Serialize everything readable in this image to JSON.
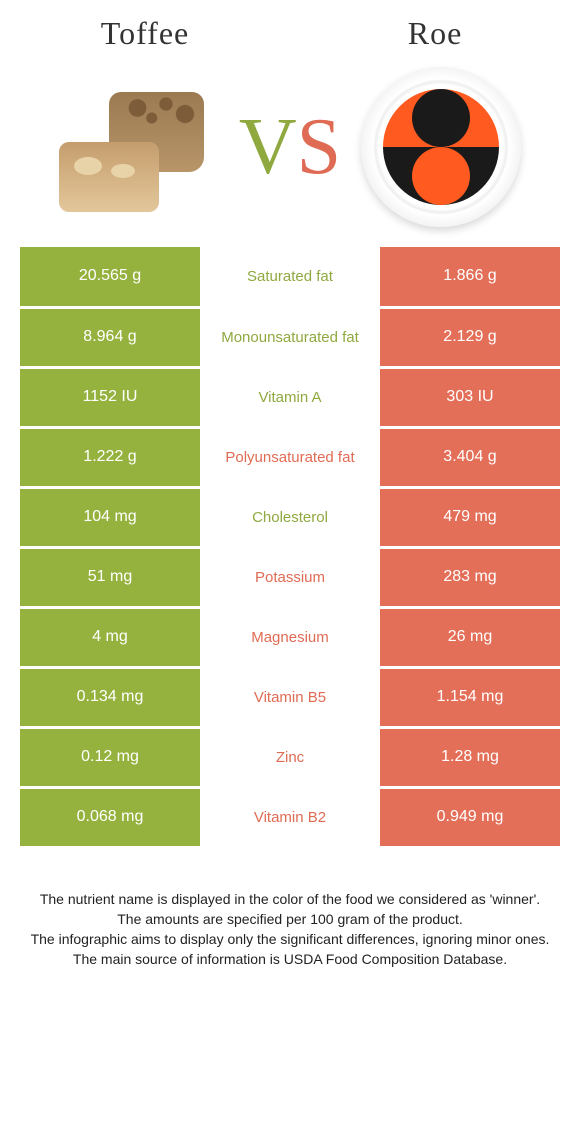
{
  "titles": {
    "left": "Toffee",
    "right": "Roe"
  },
  "vs": {
    "v": "V",
    "s": "S"
  },
  "colors": {
    "left": "#96b23e",
    "right": "#e46f58",
    "left_text": "#8fa93f",
    "right_text": "#e06b54"
  },
  "rows": [
    {
      "left": "20.565 g",
      "label": "Saturated fat",
      "right": "1.866 g",
      "winner": "left"
    },
    {
      "left": "8.964 g",
      "label": "Monounsaturated fat",
      "right": "2.129 g",
      "winner": "left"
    },
    {
      "left": "1152 IU",
      "label": "Vitamin A",
      "right": "303 IU",
      "winner": "left"
    },
    {
      "left": "1.222 g",
      "label": "Polyunsaturated fat",
      "right": "3.404 g",
      "winner": "right"
    },
    {
      "left": "104 mg",
      "label": "Cholesterol",
      "right": "479 mg",
      "winner": "left"
    },
    {
      "left": "51 mg",
      "label": "Potassium",
      "right": "283 mg",
      "winner": "right"
    },
    {
      "left": "4 mg",
      "label": "Magnesium",
      "right": "26 mg",
      "winner": "right"
    },
    {
      "left": "0.134 mg",
      "label": "Vitamin B5",
      "right": "1.154 mg",
      "winner": "right"
    },
    {
      "left": "0.12 mg",
      "label": "Zinc",
      "right": "1.28 mg",
      "winner": "right"
    },
    {
      "left": "0.068 mg",
      "label": "Vitamin B2",
      "right": "0.949 mg",
      "winner": "right"
    }
  ],
  "footer": [
    "The nutrient name is displayed in the color of the food we considered as 'winner'.",
    "The amounts are specified per 100 gram of the product.",
    "The infographic aims to display only the significant differences, ignoring minor ones.",
    "The main source of information is USDA Food Composition Database."
  ]
}
